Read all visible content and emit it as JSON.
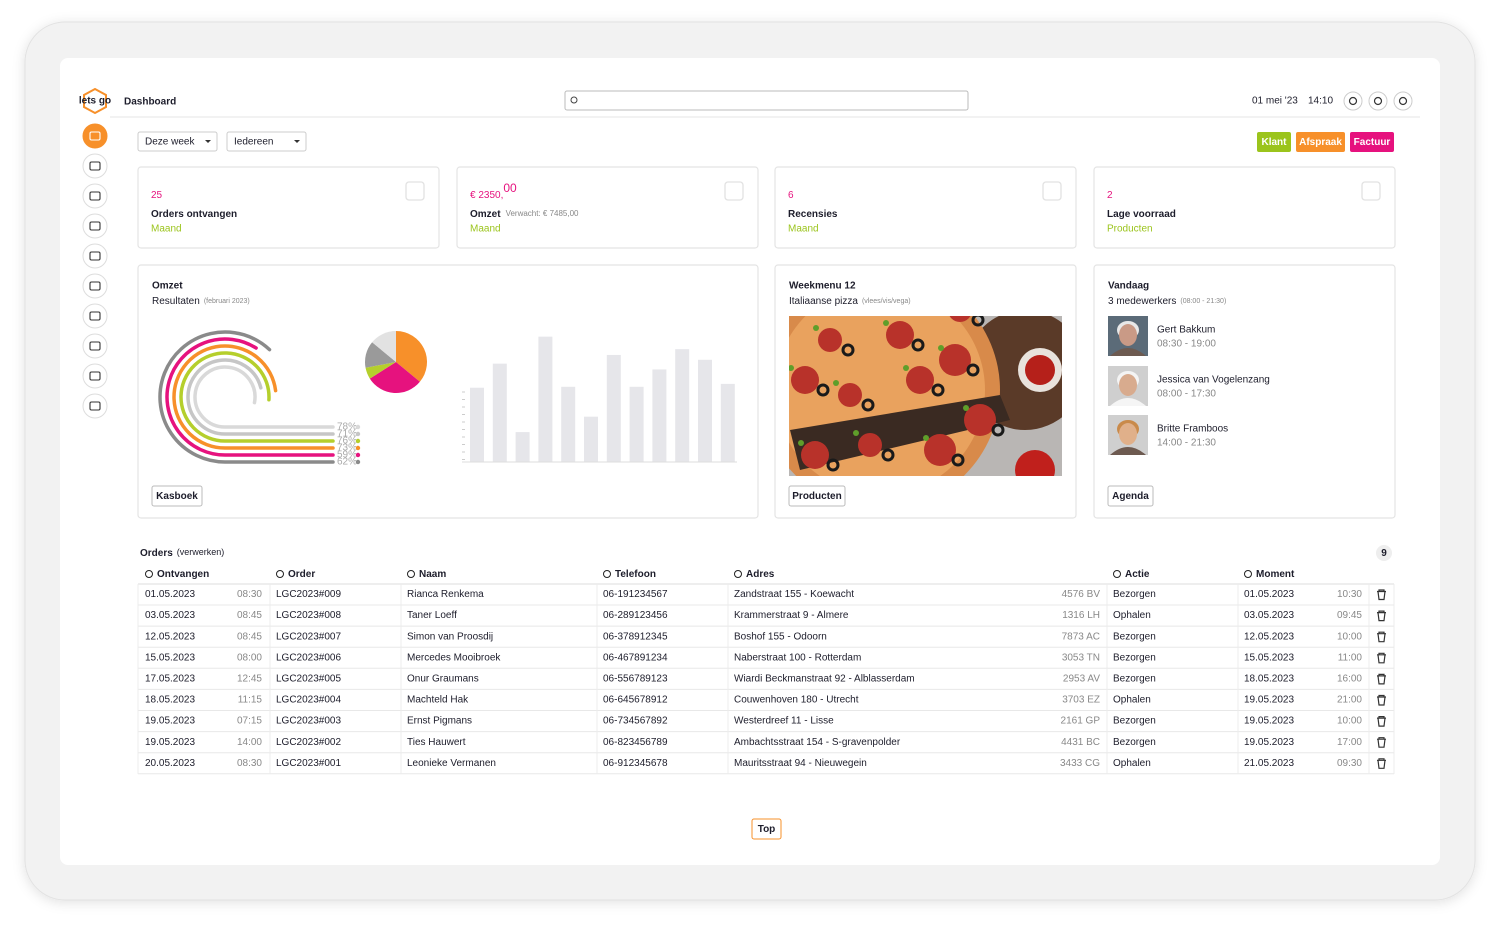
{
  "logo": "lets go",
  "header": {
    "title": "Dashboard",
    "date": "01 mei '23",
    "time": "14:10"
  },
  "filters": [
    "Deze week",
    "Iedereen"
  ],
  "actions": [
    {
      "label": "Klant",
      "color": "#9bc41c"
    },
    {
      "label": "Afspraak",
      "color": "#f7902a"
    },
    {
      "label": "Factuur",
      "color": "#e6127e"
    }
  ],
  "stats": [
    {
      "value": "25",
      "label": "Orders ontvangen",
      "period": "Maand"
    },
    {
      "value": "€ 2350,",
      "cents": "00",
      "label": "Omzet",
      "note": "Verwacht: € 7485,00",
      "period": "Maand"
    },
    {
      "value": "6",
      "label": "Recensies",
      "period": "Maand"
    },
    {
      "value": "2",
      "label": "Lage voorraad",
      "period": "Producten"
    }
  ],
  "revenue": {
    "title": "Omzet",
    "subtitle": "Resultaten",
    "period": "(februari 2023)",
    "button": "Kasboek",
    "radial": {
      "values": [
        78,
        71,
        76,
        73,
        59,
        62
      ],
      "value_labels": [
        "78%",
        "71%",
        "76%",
        "73%",
        "59%",
        "62%"
      ],
      "colors": [
        "#d9d9d9",
        "#c6c6c6",
        "#b5cf2c",
        "#f7902a",
        "#e6127e",
        "#8a8a8a"
      ]
    },
    "pie": {
      "values": [
        36,
        30,
        6,
        14,
        14
      ],
      "colors": [
        "#f7902a",
        "#e6127e",
        "#b5cf2c",
        "#9a9a9a",
        "#e2e2e2"
      ]
    },
    "bars": {
      "values": [
        77,
        102,
        31,
        130,
        78,
        47,
        111,
        78,
        96,
        117,
        106,
        81
      ],
      "ylim": [
        0,
        140
      ],
      "color": "#e6e6ea"
    }
  },
  "menu": {
    "title": "Weekmenu 12",
    "subtitle": "Italiaanse pizza",
    "note": "(vlees/vis/vega)",
    "button": "Producten"
  },
  "today": {
    "title": "Vandaag",
    "subtitle": "3 medewerkers",
    "hours": "(08:00 - 21:30)",
    "staff": [
      {
        "name": "Gert Bakkum",
        "hours": "08:30 - 19:00"
      },
      {
        "name": "Jessica van Vogelenzang",
        "hours": "08:00 - 17:30"
      },
      {
        "name": "Britte Framboos",
        "hours": "14:00 - 21:30"
      }
    ],
    "button": "Agenda"
  },
  "orders": {
    "title": "Orders",
    "note": "(verwerken)",
    "count": "9",
    "columns": [
      "Ontvangen",
      "Order",
      "Naam",
      "Telefoon",
      "Adres",
      "Actie",
      "Moment"
    ],
    "rows": [
      [
        "01.05.2023",
        "08:30",
        "LGC2023#009",
        "Rianca Renkema",
        "06-191234567",
        "Zandstraat 155 - Koewacht",
        "4576 BV",
        "Bezorgen",
        "01.05.2023",
        "10:30"
      ],
      [
        "03.05.2023",
        "08:45",
        "LGC2023#008",
        "Taner Loeff",
        "06-289123456",
        "Krammerstraat 9 - Almere",
        "1316 LH",
        "Ophalen",
        "03.05.2023",
        "09:45"
      ],
      [
        "12.05.2023",
        "08:45",
        "LGC2023#007",
        "Simon van Proosdij",
        "06-378912345",
        "Boshof 155 - Odoorn",
        "7873 AC",
        "Bezorgen",
        "12.05.2023",
        "10:00"
      ],
      [
        "15.05.2023",
        "08:00",
        "LGC2023#006",
        "Mercedes Mooibroek",
        "06-467891234",
        "Naberstraat 100 - Rotterdam",
        "3053 TN",
        "Bezorgen",
        "15.05.2023",
        "11:00"
      ],
      [
        "17.05.2023",
        "12:45",
        "LGC2023#005",
        "Onur Graumans",
        "06-556789123",
        "Wiardi Beckmanstraat 92 - Alblasserdam",
        "2953 AV",
        "Bezorgen",
        "18.05.2023",
        "16:00"
      ],
      [
        "18.05.2023",
        "11:15",
        "LGC2023#004",
        "Machteld Hak",
        "06-645678912",
        "Couwenhoven 180 - Utrecht",
        "3703 EZ",
        "Ophalen",
        "19.05.2023",
        "21:00"
      ],
      [
        "19.05.2023",
        "07:15",
        "LGC2023#003",
        "Ernst Pigmans",
        "06-734567892",
        "Westerdreef 11 - Lisse",
        "2161 GP",
        "Bezorgen",
        "19.05.2023",
        "10:00"
      ],
      [
        "19.05.2023",
        "14:00",
        "LGC2023#002",
        "Ties Hauwert",
        "06-823456789",
        "Ambachtsstraat 154 - S-gravenpolder",
        "4431 BC",
        "Bezorgen",
        "19.05.2023",
        "17:00"
      ],
      [
        "20.05.2023",
        "08:30",
        "LGC2023#001",
        "Leonieke Vermanen",
        "06-912345678",
        "Mauritsstraat 94 - Nieuwegein",
        "3433 CG",
        "Ophalen",
        "21.05.2023",
        "09:30"
      ]
    ]
  },
  "top": "Top"
}
